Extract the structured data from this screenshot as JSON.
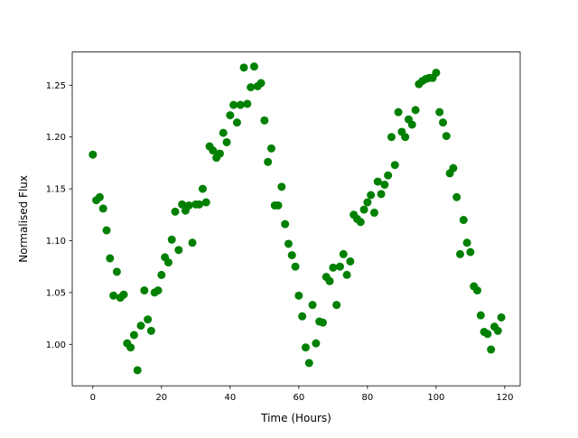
{
  "chart_data": {
    "type": "scatter",
    "title": "",
    "xlabel": "Time (Hours)",
    "ylabel": "Normalised Flux",
    "xlim": [
      -6,
      124.5
    ],
    "ylim": [
      0.96,
      1.282
    ],
    "xticks": [
      0,
      20,
      40,
      60,
      80,
      100,
      120
    ],
    "yticks": [
      1.0,
      1.05,
      1.1,
      1.15,
      1.2,
      1.25
    ],
    "ytick_labels": [
      "1.00",
      "1.05",
      "1.10",
      "1.15",
      "1.20",
      "1.25"
    ],
    "grid": false,
    "marker_color": "#008000",
    "series": [
      {
        "x": [
          0,
          1,
          2,
          3,
          4,
          5,
          6,
          7,
          8,
          9,
          10,
          11,
          12,
          13,
          14,
          15,
          16,
          17,
          18,
          19,
          20,
          21,
          22,
          23,
          24,
          25,
          26,
          27,
          28,
          29,
          30,
          31,
          32,
          33,
          34,
          35,
          36,
          37,
          38,
          39,
          40,
          41,
          42,
          43,
          44,
          45,
          46,
          47,
          48,
          49,
          50,
          51,
          52,
          53,
          54,
          55,
          56,
          57,
          58,
          59,
          60,
          61,
          62,
          63,
          64,
          65,
          66,
          67,
          68,
          69,
          70,
          71,
          72,
          73,
          74,
          75,
          76,
          77,
          78,
          79,
          80,
          81,
          82,
          83,
          84,
          85,
          86,
          87,
          88,
          89,
          90,
          91,
          92,
          93,
          94,
          95,
          96,
          97,
          98,
          99,
          100,
          101,
          102,
          103,
          104,
          105,
          106,
          107,
          108,
          109,
          110,
          111,
          112,
          113,
          114,
          115,
          116,
          117,
          118,
          119
        ],
        "y": [
          1.183,
          1.139,
          1.142,
          1.131,
          1.11,
          1.083,
          1.047,
          1.07,
          1.045,
          1.048,
          1.001,
          0.997,
          1.009,
          0.975,
          1.018,
          1.052,
          1.024,
          1.013,
          1.05,
          1.052,
          1.067,
          1.084,
          1.079,
          1.101,
          1.128,
          1.091,
          1.135,
          1.129,
          1.134,
          1.098,
          1.135,
          1.135,
          1.15,
          1.137,
          1.191,
          1.187,
          1.18,
          1.184,
          1.204,
          1.195,
          1.221,
          1.231,
          1.214,
          1.231,
          1.267,
          1.232,
          1.248,
          1.268,
          1.249,
          1.252,
          1.216,
          1.176,
          1.189,
          1.134,
          1.134,
          1.152,
          1.116,
          1.097,
          1.086,
          1.075,
          1.047,
          1.027,
          0.997,
          0.982,
          1.038,
          1.001,
          1.022,
          1.021,
          1.065,
          1.061,
          1.074,
          1.038,
          1.075,
          1.087,
          1.067,
          1.08,
          1.125,
          1.121,
          1.118,
          1.13,
          1.137,
          1.144,
          1.127,
          1.157,
          1.145,
          1.154,
          1.163,
          1.2,
          1.173,
          1.224,
          1.205,
          1.2,
          1.217,
          1.212,
          1.226,
          1.251,
          1.254,
          1.256,
          1.257,
          1.257,
          1.262,
          1.224,
          1.214,
          1.201,
          1.165,
          1.17,
          1.142,
          1.087,
          1.12,
          1.098,
          1.089,
          1.056,
          1.052,
          1.028,
          1.012,
          1.01,
          0.995,
          1.017,
          1.013,
          1.026
        ]
      }
    ]
  }
}
